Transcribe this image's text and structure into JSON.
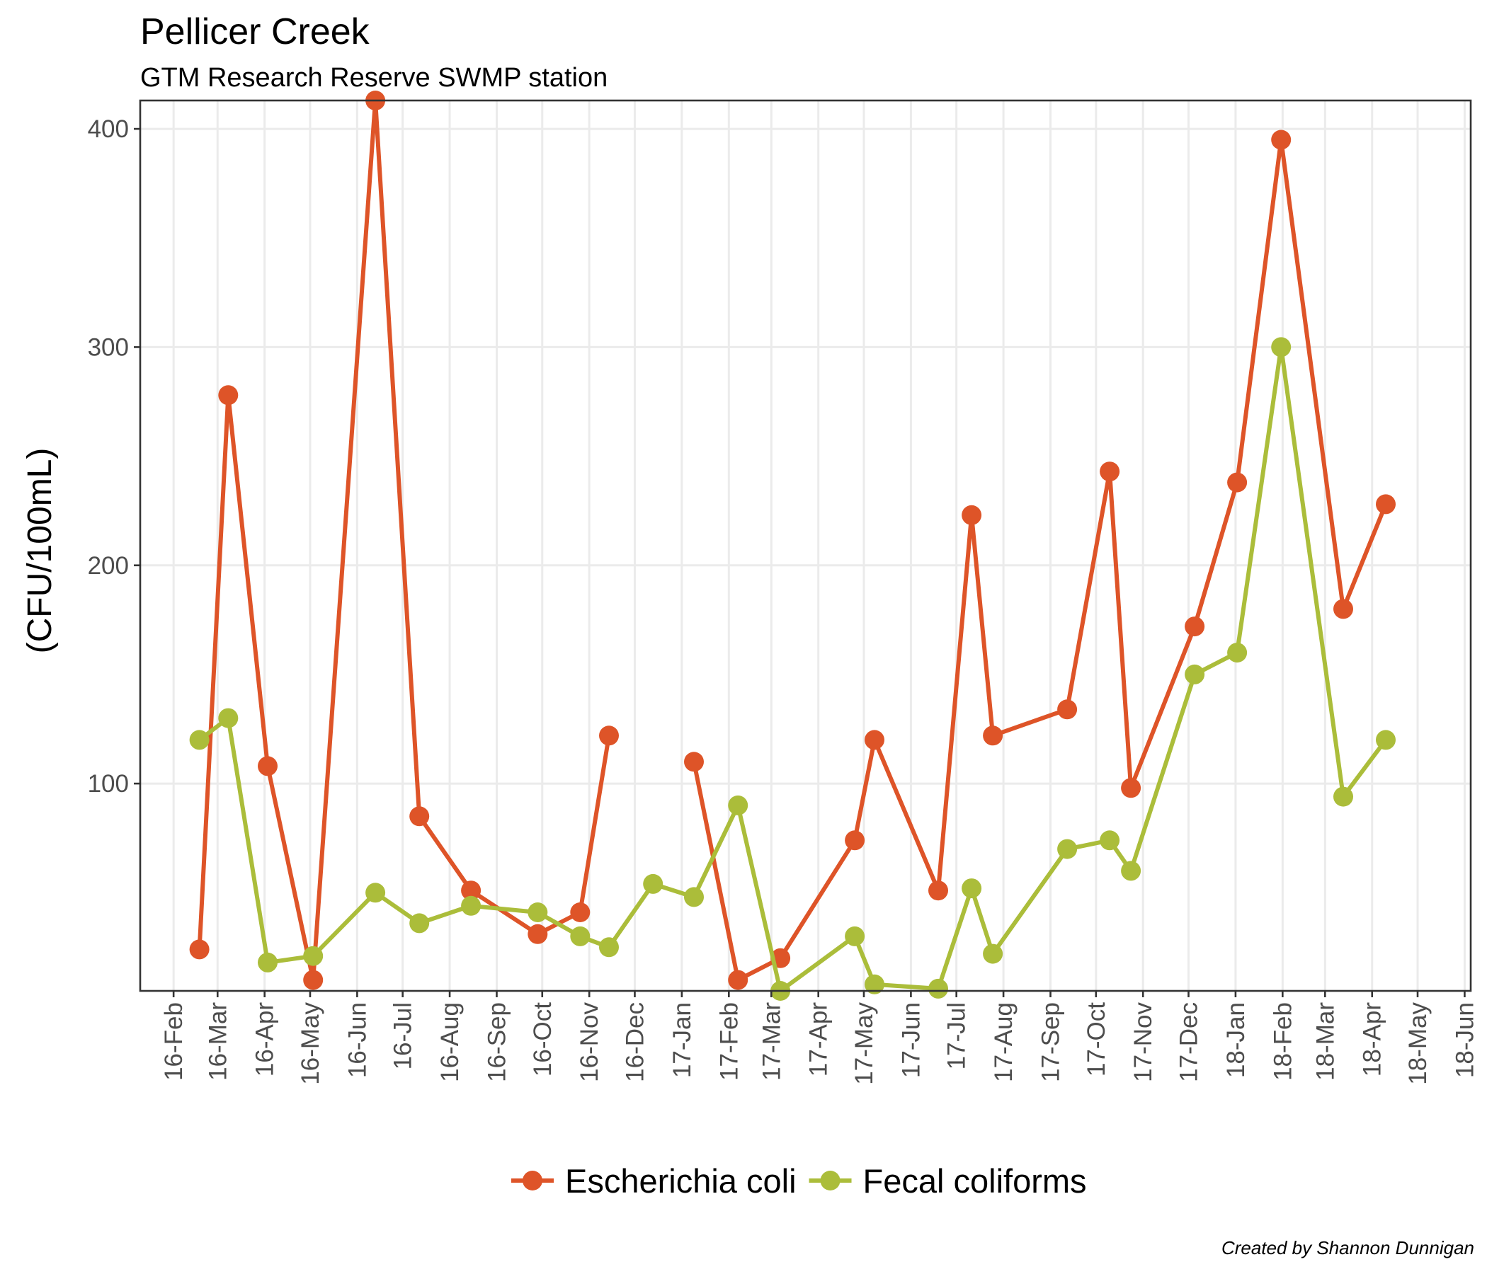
{
  "chart_data": {
    "type": "line",
    "title": "Pellicer Creek",
    "subtitle": "GTM Research Reserve SWMP station",
    "ylabel": "(CFU/100mL)",
    "xlabel": "",
    "caption": "Created by Shannon Dunnigan",
    "x_ticks": [
      "2016-02-01",
      "2016-03-01",
      "2016-04-01",
      "2016-05-01",
      "2016-06-01",
      "2016-07-01",
      "2016-08-01",
      "2016-09-01",
      "2016-10-01",
      "2016-11-01",
      "2016-12-01",
      "2017-01-01",
      "2017-02-01",
      "2017-03-01",
      "2017-04-01",
      "2017-05-01",
      "2017-06-01",
      "2017-07-01",
      "2017-08-01",
      "2017-09-01",
      "2017-10-01",
      "2017-11-01",
      "2017-12-01",
      "2018-01-01",
      "2018-02-01",
      "2018-03-01",
      "2018-04-01",
      "2018-05-01",
      "2018-06-01"
    ],
    "x_tick_labels": [
      "16-Feb",
      "16-Mar",
      "16-Apr",
      "16-May",
      "16-Jun",
      "16-Jul",
      "16-Aug",
      "16-Sep",
      "16-Oct",
      "16-Nov",
      "16-Dec",
      "17-Jan",
      "17-Feb",
      "17-Mar",
      "17-Apr",
      "17-May",
      "17-Jun",
      "17-Jul",
      "17-Aug",
      "17-Sep",
      "17-Oct",
      "17-Nov",
      "17-Dec",
      "18-Jan",
      "18-Feb",
      "18-Mar",
      "18-Apr",
      "18-May",
      "18-Jun"
    ],
    "xlim": [
      "2016-01-10",
      "2018-06-05"
    ],
    "y_ticks": [
      100,
      200,
      300,
      400
    ],
    "ylim": [
      5,
      413
    ],
    "grid": true,
    "legend_position": "bottom",
    "series": [
      {
        "name": "Escherichia coli",
        "color": "#de5428",
        "segments": [
          [
            [
              "2016-02-18",
              24
            ],
            [
              "2016-03-08",
              278
            ],
            [
              "2016-04-03",
              108
            ],
            [
              "2016-05-03",
              10
            ],
            [
              "2016-06-13",
              413
            ],
            [
              "2016-07-12",
              85
            ],
            [
              "2016-08-15",
              51
            ],
            [
              "2016-09-28",
              31
            ],
            [
              "2016-10-26",
              41
            ],
            [
              "2016-11-14",
              122
            ]
          ],
          [
            [
              "2017-01-09",
              110
            ],
            [
              "2017-02-07",
              10
            ],
            [
              "2017-03-07",
              20
            ],
            [
              "2017-04-25",
              74
            ],
            [
              "2017-05-08",
              120
            ],
            [
              "2017-06-19",
              51
            ],
            [
              "2017-07-11",
              223
            ],
            [
              "2017-07-25",
              122
            ],
            [
              "2017-09-12",
              134
            ],
            [
              "2017-10-10",
              243
            ],
            [
              "2017-10-24",
              98
            ],
            [
              "2017-12-05",
              172
            ],
            [
              "2018-01-02",
              238
            ],
            [
              "2018-01-31",
              395
            ],
            [
              "2018-03-13",
              180
            ],
            [
              "2018-04-10",
              228
            ]
          ]
        ]
      },
      {
        "name": "Fecal coliforms",
        "color": "#abbd3a",
        "segments": [
          [
            [
              "2016-02-18",
              120
            ],
            [
              "2016-03-08",
              130
            ],
            [
              "2016-04-03",
              18
            ],
            [
              "2016-05-03",
              21
            ],
            [
              "2016-06-13",
              50
            ],
            [
              "2016-07-12",
              36
            ],
            [
              "2016-08-15",
              44
            ],
            [
              "2016-09-28",
              41
            ],
            [
              "2016-10-26",
              30
            ],
            [
              "2016-11-14",
              25
            ],
            [
              "2016-12-13",
              54
            ],
            [
              "2017-01-09",
              48
            ],
            [
              "2017-02-07",
              90
            ],
            [
              "2017-03-07",
              5
            ],
            [
              "2017-04-25",
              30
            ],
            [
              "2017-05-08",
              8
            ],
            [
              "2017-06-19",
              6
            ],
            [
              "2017-07-11",
              52
            ],
            [
              "2017-07-25",
              22
            ],
            [
              "2017-09-12",
              70
            ],
            [
              "2017-10-10",
              74
            ],
            [
              "2017-10-24",
              60
            ],
            [
              "2017-12-05",
              150
            ],
            [
              "2018-01-02",
              160
            ],
            [
              "2018-01-31",
              300
            ],
            [
              "2018-03-13",
              94
            ],
            [
              "2018-04-10",
              120
            ]
          ]
        ]
      }
    ]
  }
}
